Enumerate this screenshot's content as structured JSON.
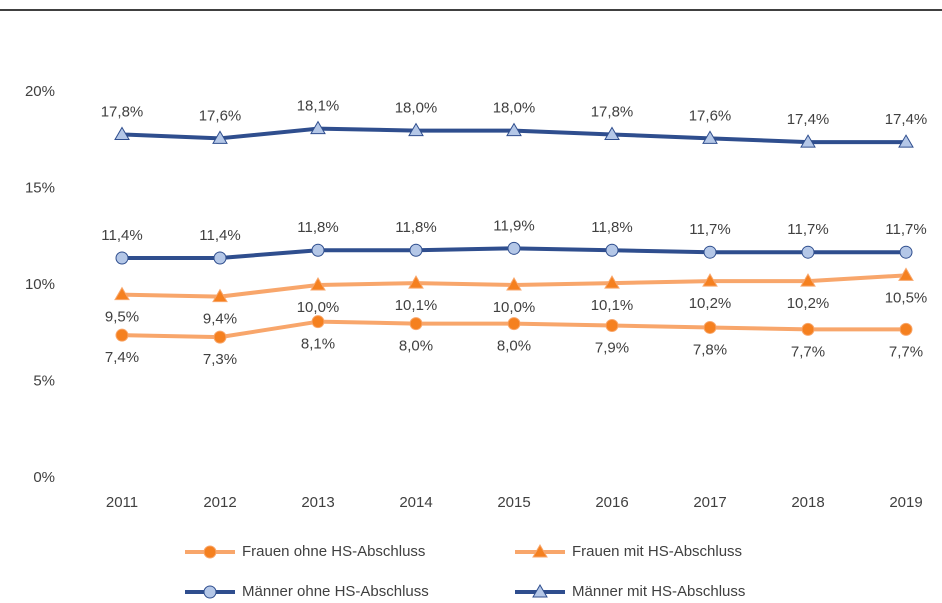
{
  "chart_data": {
    "type": "line",
    "categories": [
      "2011",
      "2012",
      "2013",
      "2014",
      "2015",
      "2016",
      "2017",
      "2018",
      "2019"
    ],
    "series": [
      {
        "name": "Frauen ohne HS-Abschluss",
        "color": "#f8a66b",
        "marker_color": "#f5801f",
        "marker": "circle",
        "values": [
          7.4,
          7.3,
          8.1,
          8.0,
          8.0,
          7.9,
          7.8,
          7.7,
          7.7
        ],
        "value_labels": [
          "7,4%",
          "7,3%",
          "8,1%",
          "8,0%",
          "8,0%",
          "7,9%",
          "7,8%",
          "7,7%",
          "7,7%"
        ]
      },
      {
        "name": "Frauen mit HS-Abschluss",
        "color": "#f8a66b",
        "marker_color": "#f5801f",
        "marker": "triangle",
        "values": [
          9.5,
          9.4,
          10.0,
          10.1,
          10.0,
          10.1,
          10.2,
          10.2,
          10.5
        ],
        "value_labels": [
          "9,5%",
          "9,4%",
          "10,0%",
          "10,1%",
          "10,0%",
          "10,1%",
          "10,2%",
          "10,2%",
          "10,5%"
        ]
      },
      {
        "name": "Männer ohne HS-Abschluss",
        "color": "#2f4e8e",
        "marker_color": "#b4c7e7",
        "marker": "circle",
        "values": [
          11.4,
          11.4,
          11.8,
          11.8,
          11.9,
          11.8,
          11.7,
          11.7,
          11.7
        ],
        "value_labels": [
          "11,4%",
          "11,4%",
          "11,8%",
          "11,8%",
          "11,9%",
          "11,8%",
          "11,7%",
          "11,7%",
          "11,7%"
        ]
      },
      {
        "name": "Männer mit HS-Abschluss",
        "color": "#2f4e8e",
        "marker_color": "#b4c7e7",
        "marker": "triangle",
        "values": [
          17.8,
          17.6,
          18.1,
          18.0,
          18.0,
          17.8,
          17.6,
          17.4,
          17.4
        ],
        "value_labels": [
          "17,8%",
          "17,6%",
          "18,1%",
          "18,0%",
          "18,0%",
          "17,8%",
          "17,6%",
          "17,4%",
          "17,4%"
        ]
      }
    ],
    "ylim": [
      0,
      20
    ],
    "yticks": [
      {
        "value": 0,
        "label": "0%"
      },
      {
        "value": 5,
        "label": "5%"
      },
      {
        "value": 10,
        "label": "10%"
      },
      {
        "value": 15,
        "label": "15%"
      },
      {
        "value": 20,
        "label": "20%"
      }
    ],
    "grid": false
  }
}
